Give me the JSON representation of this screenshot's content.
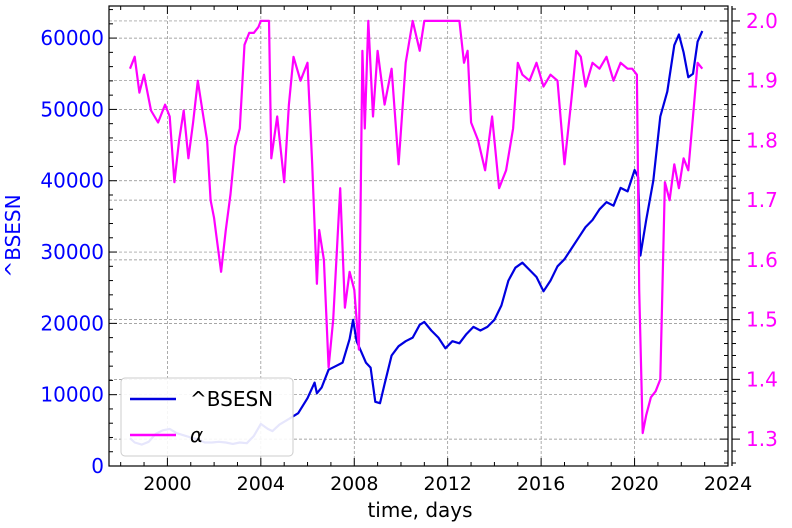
{
  "chart_data": {
    "type": "line",
    "xlabel": "time, days",
    "ylabel_left": "^BSESN",
    "ylabel_right": "",
    "grid": true,
    "legend_position": "bottom-left",
    "x_axis": {
      "range": [
        1997.5,
        2024.0
      ],
      "ticks": [
        2000,
        2004,
        2008,
        2012,
        2016,
        2020,
        2024
      ]
    },
    "y_left": {
      "range": [
        0,
        64500
      ],
      "ticks": [
        0,
        10000,
        20000,
        30000,
        40000,
        50000,
        60000
      ],
      "color": "#0000ff"
    },
    "y_right": {
      "range": [
        1.255,
        2.025
      ],
      "ticks": [
        1.3,
        1.4,
        1.5,
        1.6,
        1.7,
        1.8,
        1.9,
        2.0
      ],
      "tick_labels": [
        "1.3",
        "1.4",
        "1.5",
        "1.6",
        "1.7",
        "1.8",
        "1.9",
        "2.0"
      ],
      "color": "#ff00ff"
    },
    "series": [
      {
        "name": "^BSESN",
        "axis": "left",
        "color": "#0000e0",
        "x": [
          1998.4,
          1998.6,
          1998.9,
          1999.2,
          1999.5,
          1999.8,
          2000.1,
          2000.4,
          2000.7,
          2001.0,
          2001.3,
          2001.6,
          2001.9,
          2002.2,
          2002.5,
          2002.8,
          2003.1,
          2003.4,
          2003.7,
          2004.0,
          2004.3,
          2004.5,
          2004.8,
          2005.2,
          2005.6,
          2006.0,
          2006.3,
          2006.4,
          2006.6,
          2006.9,
          2007.2,
          2007.5,
          2007.8,
          2007.95,
          2008.1,
          2008.3,
          2008.5,
          2008.7,
          2008.9,
          2009.1,
          2009.3,
          2009.6,
          2009.9,
          2010.2,
          2010.5,
          2010.8,
          2011.0,
          2011.3,
          2011.6,
          2011.9,
          2012.2,
          2012.5,
          2012.8,
          2013.1,
          2013.4,
          2013.7,
          2014.0,
          2014.3,
          2014.6,
          2014.9,
          2015.2,
          2015.5,
          2015.8,
          2016.1,
          2016.4,
          2016.7,
          2017.0,
          2017.3,
          2017.6,
          2017.9,
          2018.2,
          2018.5,
          2018.8,
          2019.1,
          2019.4,
          2019.7,
          2020.0,
          2020.15,
          2020.25,
          2020.5,
          2020.8,
          2021.1,
          2021.4,
          2021.7,
          2021.9,
          2022.1,
          2022.3,
          2022.5,
          2022.7,
          2022.9
        ],
        "values": [
          3900,
          3300,
          3000,
          3400,
          4500,
          5000,
          5200,
          4600,
          4300,
          4000,
          3700,
          3300,
          3300,
          3400,
          3300,
          3100,
          3300,
          3200,
          4200,
          5900,
          5200,
          4900,
          5800,
          6600,
          7400,
          9500,
          11700,
          10200,
          11000,
          13500,
          14000,
          14500,
          17800,
          20500,
          17500,
          16000,
          14500,
          13800,
          9000,
          8800,
          11500,
          15500,
          16800,
          17500,
          18000,
          19800,
          20200,
          19000,
          18000,
          16500,
          17500,
          17200,
          18500,
          19500,
          19000,
          19500,
          20500,
          22500,
          26000,
          27800,
          28500,
          27500,
          26500,
          24500,
          26000,
          28000,
          29000,
          30500,
          32000,
          33500,
          34500,
          36000,
          37000,
          36500,
          39000,
          38500,
          41500,
          40500,
          29500,
          34500,
          40000,
          49000,
          52500,
          59000,
          60500,
          58000,
          54500,
          55000,
          59500,
          61000
        ]
      },
      {
        "name": "α",
        "axis": "right",
        "color": "#ff00ff",
        "x": [
          1998.4,
          1998.6,
          1998.8,
          1999.0,
          1999.3,
          1999.6,
          1999.9,
          2000.1,
          2000.3,
          2000.5,
          2000.7,
          2000.9,
          2001.1,
          2001.3,
          2001.5,
          2001.7,
          2001.85,
          2002.0,
          2002.1,
          2002.3,
          2002.5,
          2002.7,
          2002.9,
          2003.1,
          2003.3,
          2003.5,
          2003.7,
          2003.9,
          2004.0,
          2004.2,
          2004.35,
          2004.45,
          2004.7,
          2005.0,
          2005.2,
          2005.4,
          2005.7,
          2006.0,
          2006.2,
          2006.4,
          2006.5,
          2006.7,
          2006.9,
          2007.1,
          2007.4,
          2007.6,
          2007.8,
          2008.0,
          2008.2,
          2008.35,
          2008.45,
          2008.6,
          2008.8,
          2009.0,
          2009.3,
          2009.6,
          2009.9,
          2010.2,
          2010.5,
          2010.8,
          2011.0,
          2011.3,
          2011.6,
          2011.9,
          2012.2,
          2012.5,
          2012.7,
          2012.85,
          2013.0,
          2013.3,
          2013.6,
          2013.9,
          2014.2,
          2014.5,
          2014.8,
          2015.0,
          2015.2,
          2015.5,
          2015.8,
          2016.1,
          2016.4,
          2016.7,
          2017.0,
          2017.3,
          2017.5,
          2017.7,
          2017.9,
          2018.2,
          2018.5,
          2018.8,
          2019.1,
          2019.4,
          2019.7,
          2019.9,
          2020.1,
          2020.2,
          2020.35,
          2020.5,
          2020.7,
          2020.9,
          2021.1,
          2021.3,
          2021.5,
          2021.7,
          2021.9,
          2022.1,
          2022.3,
          2022.5,
          2022.7,
          2022.9
        ],
        "values": [
          1.92,
          1.94,
          1.88,
          1.91,
          1.85,
          1.83,
          1.86,
          1.84,
          1.73,
          1.8,
          1.85,
          1.77,
          1.83,
          1.9,
          1.85,
          1.8,
          1.7,
          1.67,
          1.64,
          1.58,
          1.65,
          1.71,
          1.79,
          1.82,
          1.96,
          1.98,
          1.98,
          1.99,
          2.0,
          2.0,
          2.0,
          1.77,
          1.84,
          1.73,
          1.86,
          1.94,
          1.9,
          1.93,
          1.76,
          1.56,
          1.65,
          1.6,
          1.42,
          1.5,
          1.72,
          1.52,
          1.58,
          1.55,
          1.45,
          1.95,
          1.82,
          2.0,
          1.84,
          1.95,
          1.86,
          1.92,
          1.76,
          1.93,
          2.0,
          1.95,
          2.0,
          2.0,
          2.0,
          2.0,
          2.0,
          2.0,
          1.93,
          1.95,
          1.83,
          1.8,
          1.75,
          1.84,
          1.72,
          1.75,
          1.82,
          1.93,
          1.91,
          1.9,
          1.93,
          1.89,
          1.91,
          1.9,
          1.76,
          1.87,
          1.95,
          1.94,
          1.89,
          1.93,
          1.92,
          1.94,
          1.9,
          1.93,
          1.92,
          1.92,
          1.91,
          1.55,
          1.31,
          1.34,
          1.37,
          1.38,
          1.4,
          1.73,
          1.7,
          1.76,
          1.72,
          1.77,
          1.75,
          1.84,
          1.93,
          1.92
        ]
      }
    ]
  }
}
